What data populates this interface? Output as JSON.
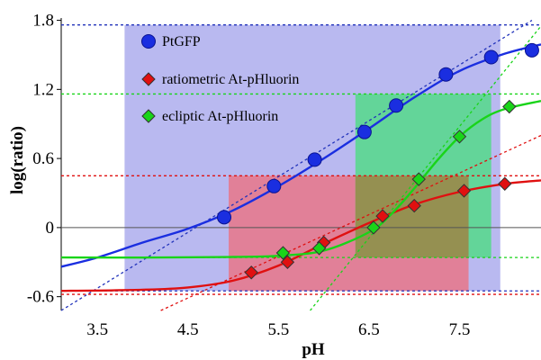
{
  "chart_data": {
    "type": "scatter",
    "xlabel": "pH",
    "ylabel": "log(ratio)",
    "xlim": [
      3.1,
      8.4
    ],
    "ylim": [
      -0.72,
      1.82
    ],
    "x_ticks": [
      "3.5",
      "4.5",
      "5.5",
      "6.5",
      "7.5"
    ],
    "y_ticks": [
      "-0.6",
      "0",
      "0.6",
      "1.2",
      "1.8"
    ],
    "legend_position": "top-left",
    "grid": false,
    "series": [
      {
        "name": "PtGFP",
        "color": "#1a2ee0",
        "marker": "circle",
        "points": [
          [
            4.9,
            0.09
          ],
          [
            5.45,
            0.36
          ],
          [
            5.9,
            0.59
          ],
          [
            6.45,
            0.83
          ],
          [
            6.8,
            1.06
          ],
          [
            7.35,
            1.33
          ],
          [
            7.85,
            1.48
          ],
          [
            8.3,
            1.54
          ]
        ],
        "fit_curve": [
          [
            3.1,
            -0.34
          ],
          [
            3.5,
            -0.26
          ],
          [
            4.0,
            -0.13
          ],
          [
            4.5,
            -0.01
          ],
          [
            5.0,
            0.15
          ],
          [
            5.5,
            0.36
          ],
          [
            6.0,
            0.6
          ],
          [
            6.5,
            0.86
          ],
          [
            7.0,
            1.13
          ],
          [
            7.5,
            1.36
          ],
          [
            8.0,
            1.51
          ],
          [
            8.4,
            1.59
          ]
        ],
        "range_box": {
          "x": [
            3.8,
            7.95
          ],
          "y": [
            -0.55,
            1.76
          ]
        }
      },
      {
        "name": "ratiometric At-pHluorin",
        "color": "#e01010",
        "marker": "diamond",
        "points": [
          [
            5.2,
            -0.39
          ],
          [
            5.6,
            -0.3
          ],
          [
            6.0,
            -0.13
          ],
          [
            6.65,
            0.1
          ],
          [
            7.0,
            0.19
          ],
          [
            7.55,
            0.32
          ],
          [
            8.0,
            0.38
          ]
        ],
        "fit_curve": [
          [
            3.1,
            -0.55
          ],
          [
            4.0,
            -0.54
          ],
          [
            4.5,
            -0.52
          ],
          [
            5.0,
            -0.46
          ],
          [
            5.5,
            -0.33
          ],
          [
            6.0,
            -0.14
          ],
          [
            6.5,
            0.04
          ],
          [
            7.0,
            0.2
          ],
          [
            7.5,
            0.31
          ],
          [
            8.0,
            0.38
          ],
          [
            8.4,
            0.41
          ]
        ],
        "range_box": {
          "x": [
            4.95,
            7.6
          ],
          "y": [
            -0.55,
            0.45
          ]
        }
      },
      {
        "name": "ecliptic At-pHluorin",
        "color": "#19d419",
        "marker": "diamond",
        "points": [
          [
            5.55,
            -0.22
          ],
          [
            5.95,
            -0.18
          ],
          [
            6.55,
            0.0
          ],
          [
            7.05,
            0.42
          ],
          [
            7.5,
            0.79
          ],
          [
            8.05,
            1.05
          ]
        ],
        "fit_curve": [
          [
            3.1,
            -0.26
          ],
          [
            4.0,
            -0.26
          ],
          [
            5.0,
            -0.255
          ],
          [
            5.5,
            -0.245
          ],
          [
            6.0,
            -0.2
          ],
          [
            6.5,
            -0.04
          ],
          [
            6.75,
            0.12
          ],
          [
            7.0,
            0.34
          ],
          [
            7.25,
            0.58
          ],
          [
            7.5,
            0.79
          ],
          [
            7.75,
            0.94
          ],
          [
            8.0,
            1.03
          ],
          [
            8.4,
            1.1
          ]
        ],
        "range_box": {
          "x": [
            6.35,
            7.85
          ],
          "y": [
            -0.26,
            1.16
          ]
        }
      }
    ],
    "reference_lines": {
      "horizontal": [
        {
          "y": 1.76,
          "color": "#2233bb"
        },
        {
          "y": -0.55,
          "color": "#2233bb"
        },
        {
          "y": 1.16,
          "color": "#19d419"
        },
        {
          "y": -0.26,
          "color": "#19d419"
        },
        {
          "y": 0.45,
          "color": "#e01010"
        },
        {
          "y": -0.58,
          "color": "#e01010"
        }
      ],
      "diagonal": [
        {
          "from": [
            3.1,
            -0.72
          ],
          "to": [
            8.3,
            1.8
          ],
          "color": "#2233bb"
        },
        {
          "from": [
            4.2,
            -0.72
          ],
          "to": [
            8.4,
            0.8
          ],
          "color": "#e01010"
        },
        {
          "from": [
            5.85,
            -0.72
          ],
          "to": [
            8.4,
            1.75
          ],
          "color": "#19d419"
        }
      ]
    }
  }
}
